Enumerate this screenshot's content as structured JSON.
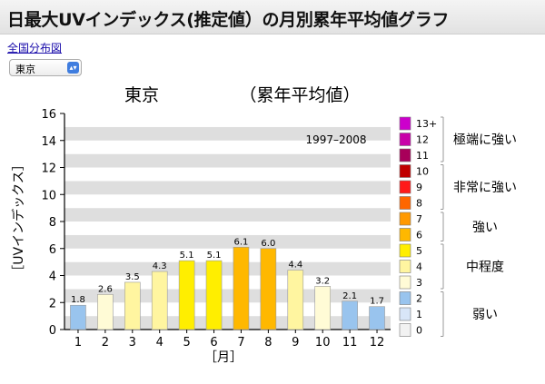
{
  "header": {
    "title": "日最大UVインデックス(推定値）の月別累年平均値グラフ"
  },
  "nav": {
    "nation_link": "全国分布図"
  },
  "city_select": {
    "value": "東京"
  },
  "chart_data": {
    "type": "bar",
    "title_city": "東京",
    "title_kind": "（累年平均値）",
    "period": "1997–2008",
    "xlabel": "［月］",
    "ylabel": "［UVインデックス］",
    "ylim": [
      0,
      16
    ],
    "y_ticks": [
      0,
      2,
      4,
      6,
      8,
      10,
      12,
      14,
      16
    ],
    "categories": [
      "1",
      "2",
      "3",
      "4",
      "5",
      "6",
      "7",
      "8",
      "9",
      "10",
      "11",
      "12"
    ],
    "values": [
      1.8,
      2.6,
      3.5,
      4.3,
      5.1,
      5.1,
      6.1,
      6.0,
      4.4,
      3.2,
      2.1,
      1.7
    ],
    "value_labels": [
      "1.8",
      "2.6",
      "3.5",
      "4.3",
      "5.1",
      "5.1",
      "6.1",
      "6.0",
      "4.4",
      "3.2",
      "2.1",
      "1.7"
    ],
    "grid": "alternating horizontal bands",
    "legend": {
      "placement": "right",
      "levels": [
        {
          "label": "13+",
          "color": "#cc00cc"
        },
        {
          "label": "12",
          "color": "#c800a8"
        },
        {
          "label": "11",
          "color": "#a8005a"
        },
        {
          "label": "10",
          "color": "#c00000"
        },
        {
          "label": "9",
          "color": "#ff1a1a"
        },
        {
          "label": "8",
          "color": "#ff6600"
        },
        {
          "label": "7",
          "color": "#ff9900"
        },
        {
          "label": "6",
          "color": "#ffb800"
        },
        {
          "label": "5",
          "color": "#ffee00"
        },
        {
          "label": "4",
          "color": "#fff5a0"
        },
        {
          "label": "3",
          "color": "#fffbd6"
        },
        {
          "label": "2",
          "color": "#99c4ee"
        },
        {
          "label": "1",
          "color": "#d8e6f8"
        },
        {
          "label": "0",
          "color": "#f2f2f2"
        }
      ],
      "groups": [
        {
          "label": "極端に強い"
        },
        {
          "label": "非常に強い"
        },
        {
          "label": "強い"
        },
        {
          "label": "中程度"
        },
        {
          "label": "弱い"
        }
      ]
    }
  }
}
